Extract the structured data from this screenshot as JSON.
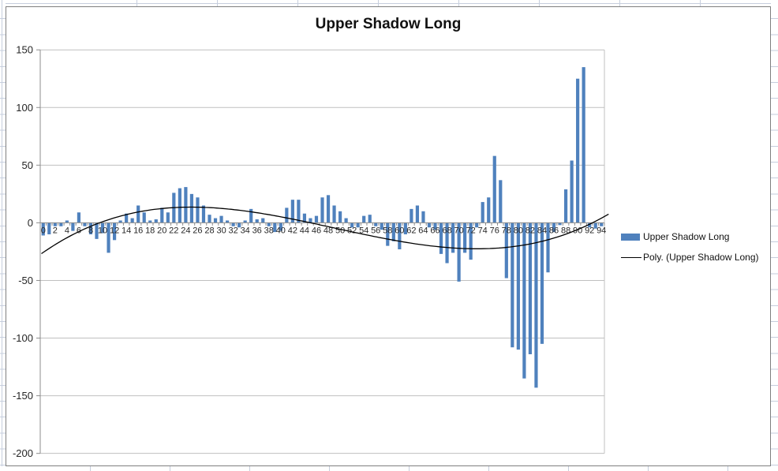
{
  "ui": {
    "chart_title": "Upper Shadow Long",
    "legend": {
      "items": [
        {
          "label": "Upper Shadow Long",
          "swatch": "bar"
        },
        {
          "label": "Poly. (Upper Shadow Long)",
          "swatch": "line"
        }
      ]
    }
  },
  "chart_data": {
    "type": "bar",
    "title": "Upper Shadow Long",
    "series_name": "Upper Shadow Long",
    "x": [
      0,
      1,
      2,
      3,
      4,
      5,
      6,
      7,
      8,
      9,
      10,
      11,
      12,
      13,
      14,
      15,
      16,
      17,
      18,
      19,
      20,
      21,
      22,
      23,
      24,
      25,
      26,
      27,
      28,
      29,
      30,
      31,
      32,
      33,
      34,
      35,
      36,
      37,
      38,
      39,
      40,
      41,
      42,
      43,
      44,
      45,
      46,
      47,
      48,
      49,
      50,
      51,
      52,
      53,
      54,
      55,
      56,
      57,
      58,
      59,
      60,
      61,
      62,
      63,
      64,
      65,
      66,
      67,
      68,
      69,
      70,
      71,
      72,
      73,
      74,
      75,
      76,
      77,
      78,
      79,
      80,
      81,
      82,
      83,
      84,
      85,
      86,
      87,
      88,
      89,
      90,
      91,
      92,
      93,
      94
    ],
    "values": [
      -11,
      -10,
      -3,
      -3,
      2,
      -7,
      9,
      -3,
      -10,
      -14,
      -9,
      -26,
      -15,
      2,
      8,
      4,
      15,
      9,
      2,
      3,
      13,
      9,
      26,
      30,
      31,
      25,
      22,
      15,
      7,
      4,
      6,
      2,
      -3,
      -4,
      2,
      12,
      3,
      4,
      -3,
      -8,
      -7,
      13,
      20,
      20,
      8,
      4,
      6,
      22,
      24,
      15,
      10,
      4,
      -4,
      -4,
      6,
      7,
      -3,
      -6,
      -20,
      -16,
      -23,
      -10,
      12,
      15,
      10,
      -4,
      -6,
      -27,
      -35,
      -26,
      -51,
      -26,
      -32,
      -4,
      18,
      22,
      58,
      37,
      -48,
      -108,
      -110,
      -135,
      -114,
      -143,
      -105,
      -43,
      -8,
      -2,
      29,
      54,
      125,
      135,
      -4,
      -5,
      -3
    ],
    "x_labels": [
      "0",
      "2",
      "4",
      "6",
      "8",
      "10",
      "12",
      "14",
      "16",
      "18",
      "20",
      "22",
      "24",
      "26",
      "28",
      "30",
      "32",
      "34",
      "36",
      "38",
      "40",
      "42",
      "44",
      "46",
      "48",
      "50",
      "52",
      "54",
      "56",
      "58",
      "60",
      "62",
      "64",
      "66",
      "68",
      "70",
      "72",
      "74",
      "76",
      "78",
      "80",
      "82",
      "84",
      "86",
      "88",
      "90",
      "92",
      "94"
    ],
    "x_label_interval": 2,
    "y_tick_labels": [
      "150",
      "100",
      "50",
      "0",
      "-50",
      "-100",
      "-150",
      "-200"
    ],
    "y_ticks": [
      150,
      100,
      50,
      0,
      -50,
      -100,
      -150,
      -200
    ],
    "ylim": [
      -200,
      150
    ],
    "grid": true,
    "legend_position": "right",
    "trendline": {
      "label": "Poly. (Upper Shadow Long)",
      "type": "polynomial",
      "roots": [
        9.5,
        45,
        92.5
      ],
      "coefficient": 0.00065,
      "x_start": -0.3,
      "x_end": 95.3
    },
    "colors": {
      "bar": "#4f81bd",
      "trendline": "#000000",
      "gridline": "#c0c0c0",
      "axis": "#8c8c8c",
      "label_text": "#262626",
      "title_text": "#111111",
      "sheet_gridline": "#c6cedd",
      "chart_border": "#7f7f7f"
    }
  }
}
